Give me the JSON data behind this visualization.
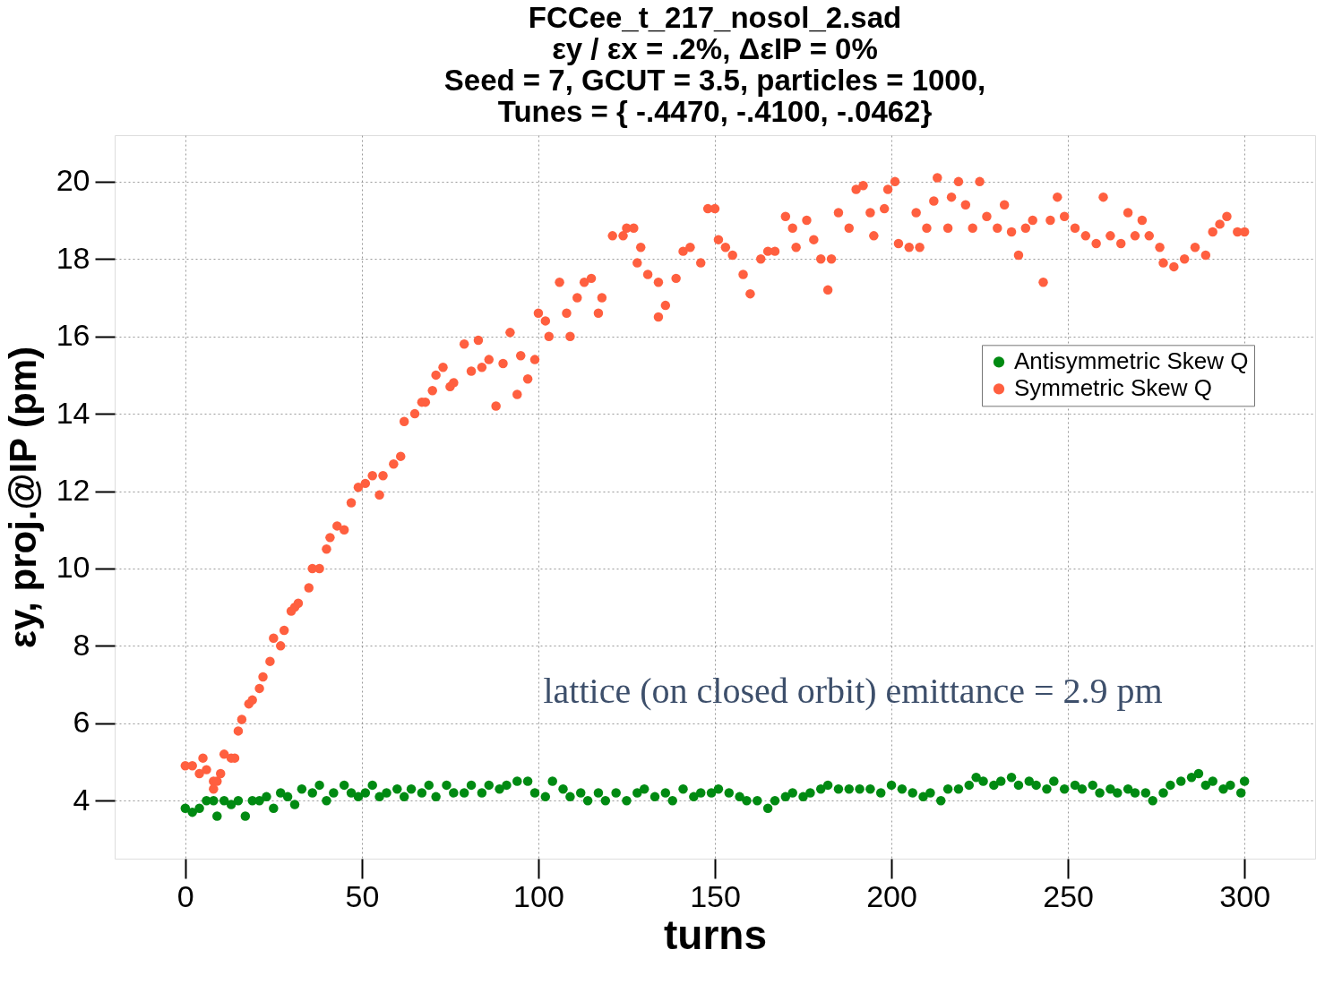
{
  "chart_data": {
    "type": "scatter",
    "title": "FCCee_t_217_nosol_2.sad",
    "subtitle": "εy / εx = .2%,    ΔεIP = 0%\nSeed = 7,  GCUT = 3.5,  particles = 1000,\nTunes = {   -.4470,   -.4100,   -.0462}",
    "xlabel": "turns",
    "ylabel": "εy, proj.@IP (pm)",
    "xlim": [
      -20,
      320
    ],
    "xticks": [
      0,
      50,
      100,
      150,
      200,
      250,
      300
    ],
    "ylim": [
      2.5,
      21.2
    ],
    "yticks": [
      4,
      6,
      8,
      10,
      12,
      14,
      16,
      18,
      20
    ],
    "grid": true,
    "legend": "right",
    "marker": "circle",
    "annotations": [
      "lattice (on closed orbit) emittance = 2.9 pm"
    ],
    "series": [
      {
        "name": "Antisymmetric Skew Q",
        "color": "#008a12",
        "x": [
          0,
          2,
          4,
          6,
          8,
          9,
          11,
          13,
          15,
          17,
          19,
          21,
          23,
          25,
          27,
          29,
          31,
          33,
          36,
          38,
          40,
          42,
          45,
          47,
          49,
          51,
          53,
          55,
          57,
          60,
          62,
          64,
          67,
          69,
          71,
          74,
          76,
          79,
          81,
          84,
          86,
          89,
          91,
          94,
          97,
          99,
          102,
          104,
          107,
          109,
          112,
          114,
          117,
          119,
          122,
          125,
          128,
          130,
          133,
          136,
          138,
          141,
          144,
          146,
          149,
          151,
          154,
          157,
          159,
          162,
          165,
          167,
          170,
          172,
          175,
          177,
          180,
          182,
          185,
          188,
          191,
          194,
          197,
          200,
          203,
          206,
          209,
          211,
          214,
          216,
          219,
          222,
          224,
          226,
          229,
          231,
          234,
          236,
          239,
          241,
          244,
          246,
          249,
          252,
          254,
          257,
          259,
          262,
          264,
          267,
          269,
          272,
          274,
          277,
          279,
          282,
          285,
          287,
          289,
          291,
          294,
          296,
          299,
          300
        ],
        "values": [
          3.8,
          3.7,
          3.8,
          4.0,
          4.0,
          3.6,
          4.0,
          3.9,
          4.0,
          3.6,
          4.0,
          4.0,
          4.1,
          3.8,
          4.2,
          4.1,
          3.9,
          4.3,
          4.2,
          4.4,
          4.0,
          4.2,
          4.4,
          4.2,
          4.1,
          4.2,
          4.4,
          4.1,
          4.2,
          4.3,
          4.1,
          4.3,
          4.2,
          4.4,
          4.1,
          4.4,
          4.2,
          4.2,
          4.4,
          4.2,
          4.4,
          4.3,
          4.4,
          4.5,
          4.5,
          4.2,
          4.1,
          4.5,
          4.3,
          4.1,
          4.2,
          4.0,
          4.2,
          4.0,
          4.2,
          4.0,
          4.2,
          4.3,
          4.1,
          4.2,
          4.0,
          4.3,
          4.1,
          4.2,
          4.2,
          4.3,
          4.2,
          4.1,
          4.0,
          4.0,
          3.8,
          4.0,
          4.1,
          4.2,
          4.1,
          4.2,
          4.3,
          4.4,
          4.3,
          4.3,
          4.3,
          4.3,
          4.2,
          4.4,
          4.3,
          4.2,
          4.1,
          4.2,
          4.0,
          4.3,
          4.3,
          4.4,
          4.6,
          4.5,
          4.4,
          4.5,
          4.6,
          4.4,
          4.5,
          4.4,
          4.3,
          4.5,
          4.3,
          4.4,
          4.3,
          4.4,
          4.2,
          4.3,
          4.2,
          4.3,
          4.2,
          4.2,
          4.0,
          4.2,
          4.4,
          4.5,
          4.6,
          4.7,
          4.4,
          4.5,
          4.3,
          4.4,
          4.2,
          4.5
        ]
      },
      {
        "name": "Symmetric Skew Q",
        "color": "#ff5f3f",
        "x": [
          0,
          2,
          4,
          5,
          6,
          8,
          8,
          9,
          10,
          11,
          13,
          14,
          15,
          16,
          18,
          19,
          21,
          22,
          24,
          25,
          27,
          28,
          30,
          31,
          32,
          35,
          36,
          38,
          40,
          41,
          43,
          45,
          47,
          49,
          51,
          53,
          55,
          56,
          59,
          61,
          62,
          65,
          67,
          68,
          70,
          71,
          73,
          75,
          76,
          79,
          81,
          83,
          84,
          86,
          88,
          90,
          92,
          94,
          95,
          97,
          99,
          100,
          102,
          103,
          106,
          108,
          109,
          111,
          113,
          115,
          117,
          118,
          121,
          124,
          125,
          127,
          128,
          129,
          131,
          134,
          134,
          136,
          139,
          141,
          143,
          146,
          148,
          150,
          151,
          153,
          155,
          158,
          160,
          163,
          165,
          167,
          170,
          172,
          173,
          176,
          178,
          180,
          182,
          183,
          185,
          188,
          190,
          192,
          194,
          195,
          198,
          199,
          201,
          202,
          205,
          207,
          208,
          210,
          212,
          213,
          216,
          217,
          219,
          221,
          223,
          225,
          227,
          230,
          232,
          234,
          236,
          238,
          240,
          243,
          245,
          247,
          249,
          252,
          255,
          258,
          260,
          262,
          265,
          267,
          269,
          271,
          273,
          276,
          277,
          280,
          283,
          286,
          289,
          291,
          293,
          295,
          298,
          300
        ],
        "values": [
          4.9,
          4.9,
          4.7,
          5.1,
          4.8,
          4.5,
          4.3,
          4.5,
          4.7,
          5.2,
          5.1,
          5.1,
          5.8,
          6.1,
          6.5,
          6.6,
          6.9,
          7.2,
          7.6,
          8.2,
          8.0,
          8.4,
          8.9,
          9.0,
          9.1,
          9.5,
          10.0,
          10.0,
          10.5,
          10.8,
          11.1,
          11.0,
          11.7,
          12.1,
          12.2,
          12.4,
          11.9,
          12.4,
          12.7,
          12.9,
          13.8,
          14.0,
          14.3,
          14.3,
          14.6,
          15.0,
          15.2,
          14.7,
          14.8,
          15.8,
          15.1,
          15.9,
          15.2,
          15.4,
          14.2,
          15.3,
          16.1,
          14.5,
          15.5,
          14.9,
          15.4,
          16.6,
          16.4,
          16.0,
          17.4,
          16.6,
          16.0,
          17.0,
          17.4,
          17.5,
          16.6,
          17.0,
          18.6,
          18.6,
          18.8,
          18.8,
          17.9,
          18.3,
          17.6,
          17.4,
          16.5,
          16.8,
          17.5,
          18.2,
          18.3,
          17.9,
          19.3,
          19.3,
          18.5,
          18.3,
          18.1,
          17.6,
          17.1,
          18.0,
          18.2,
          18.2,
          19.1,
          18.8,
          18.3,
          19.0,
          18.5,
          18.0,
          17.2,
          18.0,
          19.2,
          18.8,
          19.8,
          19.9,
          19.2,
          18.6,
          19.3,
          19.8,
          20.0,
          18.4,
          18.3,
          19.2,
          18.3,
          18.8,
          19.5,
          20.1,
          18.8,
          19.6,
          20.0,
          19.4,
          18.8,
          20.0,
          19.1,
          18.8,
          19.4,
          18.7,
          18.1,
          18.8,
          19.0,
          17.4,
          19.0,
          19.6,
          19.1,
          18.8,
          18.6,
          18.4,
          19.6,
          18.6,
          18.4,
          19.2,
          18.6,
          19.0,
          18.6,
          18.3,
          17.9,
          17.8,
          18.0,
          18.3,
          18.1,
          18.7,
          18.9,
          19.1,
          18.7,
          18.7
        ]
      }
    ]
  }
}
